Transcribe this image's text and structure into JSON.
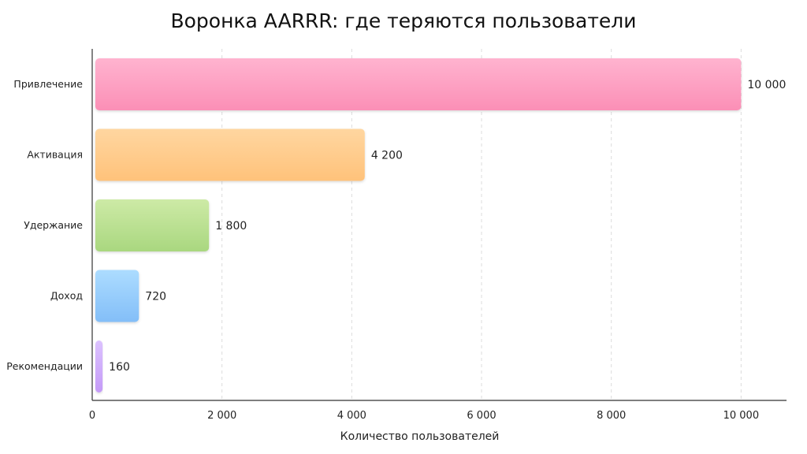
{
  "chart_data": {
    "type": "bar",
    "orientation": "horizontal",
    "title": "Воронка AARRR: где теряются пользователи",
    "xlabel": "Количество пользователей",
    "ylabel": "",
    "categories": [
      "Привлечение",
      "Активация",
      "Удержание",
      "Доход",
      "Рекомендации"
    ],
    "values": [
      10000,
      4200,
      1800,
      720,
      160
    ],
    "value_labels": [
      "10 000",
      "4 200",
      "1 800",
      "720",
      "160"
    ],
    "xlim": [
      0,
      10700
    ],
    "x_ticks": [
      0,
      2000,
      4000,
      6000,
      8000,
      10000
    ],
    "x_tick_labels": [
      "0",
      "2 000",
      "4 000",
      "6 000",
      "8 000",
      "10 000"
    ],
    "grid": "vertical dashed",
    "colors": [
      [
        "#ffb3cf",
        "#fb8fb6"
      ],
      [
        "#ffd6a0",
        "#ffc27a"
      ],
      [
        "#cdeaa6",
        "#a9d77f"
      ],
      [
        "#acdcff",
        "#83bef8"
      ],
      [
        "#dcc2ff",
        "#c49af8"
      ]
    ]
  }
}
